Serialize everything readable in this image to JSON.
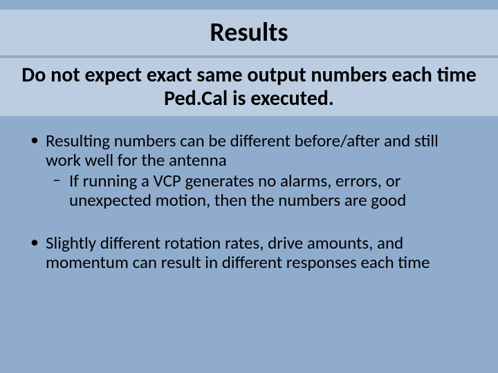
{
  "colors": {
    "slide_bg": "#8faccd",
    "band_bg": "#bccde2",
    "text": "#000000"
  },
  "title": "Results",
  "subtitle": "Do not expect exact same output numbers each time Ped.Cal is executed.",
  "bullets": [
    {
      "text": "Resulting numbers can be different before/after and still work well for the antenna",
      "sub": [
        "If running a VCP generates no alarms, errors, or unexpected motion, then the numbers are good"
      ]
    },
    {
      "text": "Slightly different rotation rates, drive amounts, and momentum can result in different responses each time",
      "sub": []
    }
  ]
}
